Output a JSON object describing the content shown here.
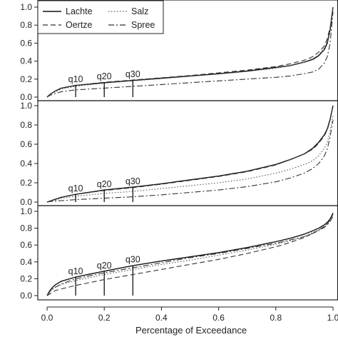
{
  "chart_data": {
    "type": "line",
    "xlabel": "Percentage of Exceedance",
    "x_ticks": [
      "0.0",
      "0.2",
      "0.4",
      "0.6",
      "0.8",
      "1.0"
    ],
    "xlim": [
      0,
      1
    ],
    "legend": {
      "placement": "top-left",
      "entries": [
        {
          "label": "Lachte",
          "style": "solid"
        },
        {
          "label": "Salz",
          "style": "dotted"
        },
        {
          "label": "Oertze",
          "style": "dashed"
        },
        {
          "label": "Spree",
          "style": "dashdot"
        }
      ]
    },
    "series_styles": {
      "Lachte": {
        "dash": "",
        "color": "#111111",
        "width": 1.4
      },
      "Oertze": {
        "dash": "7,4",
        "color": "#333333",
        "width": 1.1
      },
      "Salz": {
        "dash": "1.5,2.5",
        "color": "#555555",
        "width": 1.1
      },
      "Spree": {
        "dash": "8,3,2,3",
        "color": "#333333",
        "width": 1.1
      }
    },
    "panels": [
      {
        "ylim": [
          0,
          1
        ],
        "y_ticks": [
          "0.0",
          "0.2",
          "0.4",
          "0.6",
          "0.8",
          "1.0"
        ],
        "markers": [
          {
            "label": "q10",
            "x": 0.1,
            "top": 0.135
          },
          {
            "label": "q20",
            "x": 0.2,
            "top": 0.165
          },
          {
            "label": "q30",
            "x": 0.3,
            "top": 0.19
          }
        ],
        "series": [
          {
            "name": "Lachte",
            "x": [
              0,
              0.01,
              0.03,
              0.05,
              0.1,
              0.2,
              0.3,
              0.4,
              0.5,
              0.6,
              0.7,
              0.8,
              0.85,
              0.9,
              0.93,
              0.95,
              0.97,
              0.98,
              0.99,
              1.0
            ],
            "y": [
              0.0,
              0.03,
              0.07,
              0.1,
              0.13,
              0.16,
              0.185,
              0.21,
              0.235,
              0.26,
              0.29,
              0.33,
              0.35,
              0.39,
              0.42,
              0.46,
              0.53,
              0.6,
              0.75,
              1.0
            ]
          },
          {
            "name": "Oertze",
            "x": [
              0,
              0.01,
              0.03,
              0.05,
              0.1,
              0.2,
              0.3,
              0.4,
              0.5,
              0.6,
              0.7,
              0.8,
              0.85,
              0.9,
              0.93,
              0.95,
              0.97,
              0.98,
              0.99,
              1.0
            ],
            "y": [
              0.0,
              0.03,
              0.07,
              0.1,
              0.13,
              0.165,
              0.19,
              0.215,
              0.24,
              0.27,
              0.3,
              0.34,
              0.37,
              0.41,
              0.45,
              0.5,
              0.57,
              0.65,
              0.78,
              1.0
            ]
          },
          {
            "name": "Salz",
            "x": [
              0,
              0.01,
              0.03,
              0.05,
              0.1,
              0.2,
              0.3,
              0.4,
              0.5,
              0.6,
              0.7,
              0.8,
              0.85,
              0.9,
              0.93,
              0.95,
              0.97,
              0.98,
              0.99,
              1.0
            ],
            "y": [
              0.0,
              0.03,
              0.06,
              0.09,
              0.12,
              0.155,
              0.18,
              0.205,
              0.23,
              0.255,
              0.285,
              0.32,
              0.35,
              0.39,
              0.43,
              0.47,
              0.55,
              0.62,
              0.76,
              1.0
            ]
          },
          {
            "name": "Spree",
            "x": [
              0,
              0.01,
              0.03,
              0.05,
              0.1,
              0.2,
              0.3,
              0.4,
              0.5,
              0.6,
              0.7,
              0.8,
              0.85,
              0.9,
              0.93,
              0.95,
              0.97,
              0.98,
              0.99,
              1.0
            ],
            "y": [
              0.0,
              0.02,
              0.04,
              0.06,
              0.08,
              0.1,
              0.12,
              0.14,
              0.16,
              0.18,
              0.2,
              0.22,
              0.235,
              0.26,
              0.28,
              0.31,
              0.38,
              0.45,
              0.6,
              0.95
            ]
          }
        ]
      },
      {
        "ylim": [
          0,
          1
        ],
        "y_ticks": [
          "0.0",
          "0.2",
          "0.4",
          "0.6",
          "0.8",
          "1.0"
        ],
        "markers": [
          {
            "label": "q10",
            "x": 0.1,
            "top": 0.08
          },
          {
            "label": "q20",
            "x": 0.2,
            "top": 0.125
          },
          {
            "label": "q30",
            "x": 0.3,
            "top": 0.155
          }
        ],
        "series": [
          {
            "name": "Lachte",
            "x": [
              0,
              0.01,
              0.03,
              0.05,
              0.1,
              0.2,
              0.3,
              0.4,
              0.5,
              0.6,
              0.7,
              0.8,
              0.85,
              0.9,
              0.93,
              0.95,
              0.97,
              0.98,
              0.99,
              1.0
            ],
            "y": [
              0.0,
              0.01,
              0.03,
              0.05,
              0.08,
              0.125,
              0.155,
              0.19,
              0.23,
              0.27,
              0.32,
              0.39,
              0.44,
              0.5,
              0.56,
              0.62,
              0.7,
              0.76,
              0.86,
              1.0
            ]
          },
          {
            "name": "Oertze",
            "x": [
              0,
              0.01,
              0.03,
              0.05,
              0.1,
              0.2,
              0.3,
              0.4,
              0.5,
              0.6,
              0.7,
              0.8,
              0.85,
              0.9,
              0.93,
              0.95,
              0.97,
              0.98,
              0.99,
              1.0
            ],
            "y": [
              0.0,
              0.01,
              0.03,
              0.05,
              0.08,
              0.12,
              0.15,
              0.185,
              0.225,
              0.265,
              0.315,
              0.385,
              0.44,
              0.5,
              0.55,
              0.61,
              0.69,
              0.75,
              0.85,
              1.0
            ]
          },
          {
            "name": "Salz",
            "x": [
              0,
              0.01,
              0.03,
              0.05,
              0.1,
              0.2,
              0.3,
              0.4,
              0.5,
              0.6,
              0.7,
              0.8,
              0.85,
              0.9,
              0.93,
              0.95,
              0.97,
              0.98,
              0.99,
              1.0
            ],
            "y": [
              0.0,
              0.01,
              0.02,
              0.04,
              0.06,
              0.09,
              0.11,
              0.14,
              0.17,
              0.2,
              0.24,
              0.3,
              0.34,
              0.39,
              0.43,
              0.48,
              0.56,
              0.62,
              0.74,
              0.9
            ]
          },
          {
            "name": "Spree",
            "x": [
              0,
              0.01,
              0.03,
              0.05,
              0.1,
              0.2,
              0.3,
              0.4,
              0.5,
              0.6,
              0.7,
              0.8,
              0.85,
              0.9,
              0.93,
              0.95,
              0.97,
              0.98,
              0.99,
              1.0
            ],
            "y": [
              0.0,
              0.005,
              0.01,
              0.015,
              0.025,
              0.04,
              0.055,
              0.075,
              0.1,
              0.125,
              0.16,
              0.21,
              0.25,
              0.3,
              0.35,
              0.4,
              0.48,
              0.55,
              0.68,
              0.85
            ]
          }
        ]
      },
      {
        "ylim": [
          0,
          1
        ],
        "y_ticks": [
          "0.0",
          "0.2",
          "0.4",
          "0.6",
          "0.8",
          "1.0"
        ],
        "markers": [
          {
            "label": "q10",
            "x": 0.1,
            "top": 0.22
          },
          {
            "label": "q20",
            "x": 0.2,
            "top": 0.29
          },
          {
            "label": "q30",
            "x": 0.3,
            "top": 0.36
          }
        ],
        "series": [
          {
            "name": "Lachte",
            "x": [
              0,
              0.01,
              0.02,
              0.03,
              0.05,
              0.1,
              0.2,
              0.3,
              0.4,
              0.5,
              0.6,
              0.7,
              0.8,
              0.85,
              0.9,
              0.93,
              0.95,
              0.97,
              0.98,
              0.99,
              1.0
            ],
            "y": [
              0.0,
              0.06,
              0.1,
              0.13,
              0.17,
              0.22,
              0.29,
              0.355,
              0.41,
              0.46,
              0.51,
              0.57,
              0.64,
              0.68,
              0.73,
              0.77,
              0.8,
              0.84,
              0.87,
              0.91,
              0.98
            ]
          },
          {
            "name": "Oertze",
            "x": [
              0,
              0.01,
              0.02,
              0.03,
              0.05,
              0.1,
              0.2,
              0.3,
              0.4,
              0.5,
              0.6,
              0.7,
              0.8,
              0.85,
              0.9,
              0.93,
              0.95,
              0.97,
              0.98,
              0.99,
              1.0
            ],
            "y": [
              0.0,
              0.02,
              0.04,
              0.06,
              0.08,
              0.12,
              0.19,
              0.25,
              0.31,
              0.37,
              0.43,
              0.5,
              0.58,
              0.63,
              0.69,
              0.74,
              0.78,
              0.82,
              0.85,
              0.9,
              0.97
            ]
          },
          {
            "name": "Salz",
            "x": [
              0,
              0.01,
              0.02,
              0.03,
              0.05,
              0.1,
              0.2,
              0.3,
              0.4,
              0.5,
              0.6,
              0.7,
              0.8,
              0.85,
              0.9,
              0.93,
              0.95,
              0.97,
              0.98,
              0.99,
              1.0
            ],
            "y": [
              0.0,
              0.04,
              0.08,
              0.1,
              0.13,
              0.18,
              0.25,
              0.31,
              0.37,
              0.42,
              0.48,
              0.54,
              0.61,
              0.65,
              0.7,
              0.75,
              0.78,
              0.82,
              0.86,
              0.9,
              0.96
            ]
          },
          {
            "name": "Spree",
            "x": [
              0,
              0.01,
              0.02,
              0.03,
              0.05,
              0.1,
              0.2,
              0.3,
              0.4,
              0.5,
              0.6,
              0.7,
              0.8,
              0.85,
              0.9,
              0.93,
              0.95,
              0.97,
              0.98,
              0.99,
              1.0
            ],
            "y": [
              0.0,
              0.05,
              0.08,
              0.1,
              0.14,
              0.2,
              0.27,
              0.33,
              0.39,
              0.45,
              0.5,
              0.56,
              0.62,
              0.66,
              0.7,
              0.74,
              0.77,
              0.81,
              0.84,
              0.88,
              0.94
            ]
          }
        ]
      }
    ]
  }
}
